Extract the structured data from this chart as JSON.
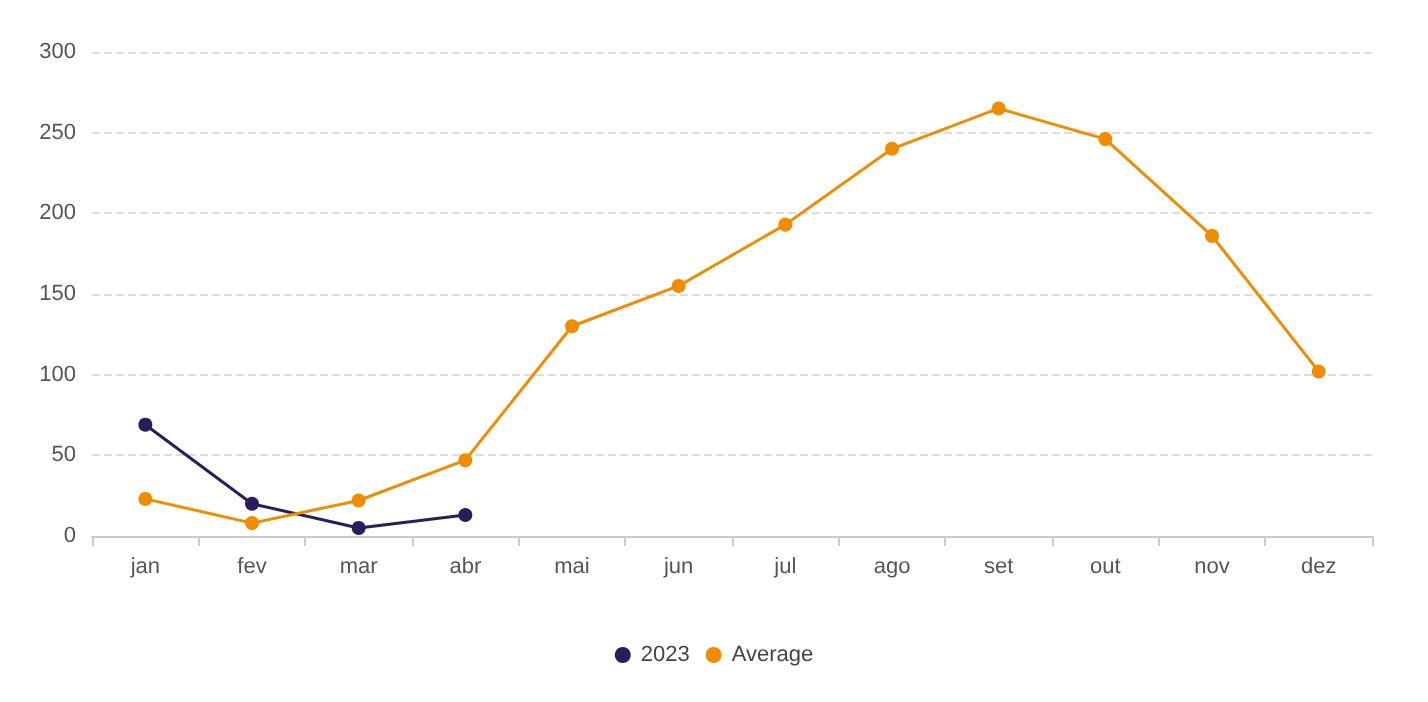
{
  "chart_data": {
    "type": "line",
    "categories": [
      "jan",
      "fev",
      "mar",
      "abr",
      "mai",
      "jun",
      "jul",
      "ago",
      "set",
      "out",
      "nov",
      "dez"
    ],
    "series": [
      {
        "name": "2023",
        "color": "#2b1d5c",
        "values": [
          69,
          20,
          5,
          13,
          null,
          null,
          null,
          null,
          null,
          null,
          null,
          null
        ]
      },
      {
        "name": "Average",
        "color": "#ef8c00",
        "values": [
          23,
          8,
          22,
          47,
          130,
          155,
          193,
          240,
          265,
          246,
          186,
          102
        ]
      }
    ],
    "ylim": [
      0,
      300
    ],
    "yticks": [
      0,
      50,
      100,
      150,
      200,
      250,
      300
    ],
    "grid": "y",
    "legend": "bottom",
    "marker": "circle",
    "line_style": "solid"
  }
}
